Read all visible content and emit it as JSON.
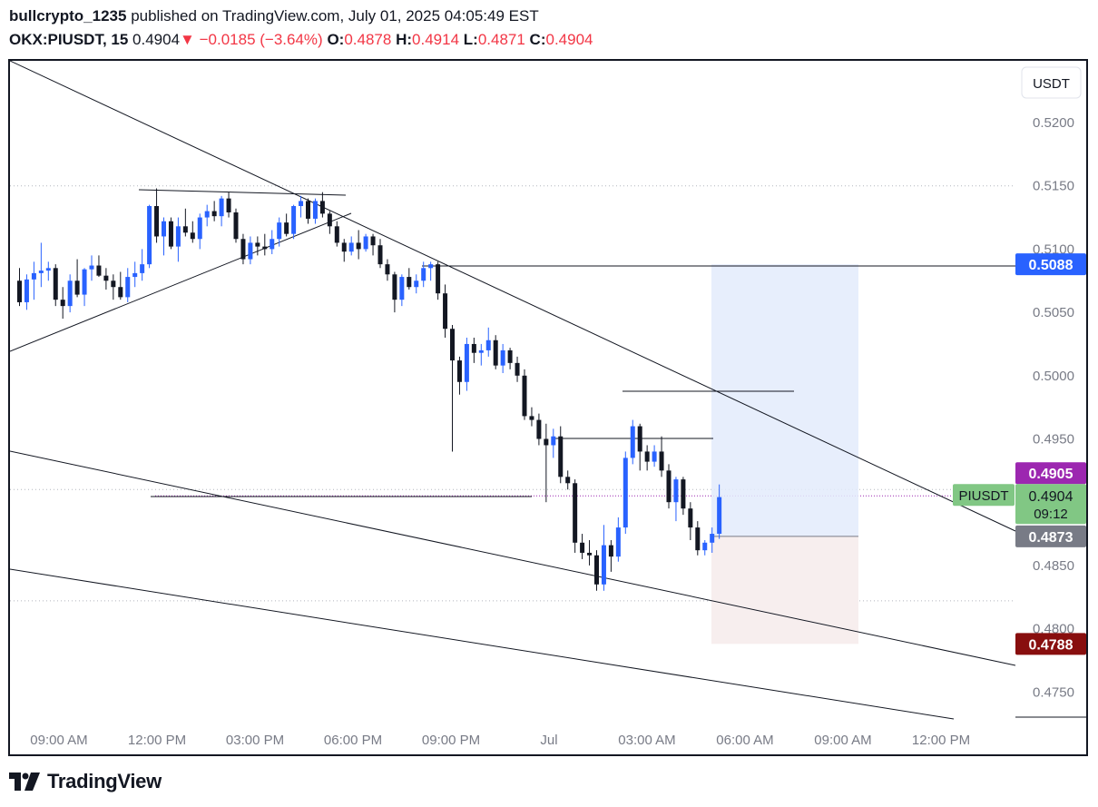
{
  "header": {
    "author": "bullcrypto_1235",
    "published_text": "published on TradingView.com, July 01, 2025 04:05:49 EST",
    "symbol": "OKX:PIUSDT, 15",
    "last_price": "0.4904",
    "change": "−0.0185 (−3.64%)",
    "o_label": "O:",
    "o_value": "0.4878",
    "h_label": "H:",
    "h_value": "0.4914",
    "l_label": "L:",
    "l_value": "0.4871",
    "c_label": "C:",
    "c_value": "0.4904"
  },
  "currency_button": "USDT",
  "footer": {
    "brand": "TradingView"
  },
  "colors": {
    "up": "#2962ff",
    "down": "#131722",
    "profit_zone": "#e3ebfb",
    "loss_zone": "#f7eeee",
    "symbol_tag": "#81c784",
    "current_tag": "#9c27b0"
  },
  "chart_data": {
    "type": "candlestick",
    "y_ticks": [
      "0.5200",
      "0.5150",
      "0.5100",
      "0.5050",
      "0.5000",
      "0.4950",
      "0.4850",
      "0.4800",
      "0.4750"
    ],
    "x_ticks": [
      "09:00 AM",
      "12:00 PM",
      "03:00 PM",
      "06:00 PM",
      "09:00 PM",
      "Jul",
      "03:00 AM",
      "06:00 AM",
      "09:00 AM",
      "12:00 PM"
    ],
    "price_tags": {
      "target": "0.5088",
      "high": "0.4905",
      "symbol_label": "PIUSDT",
      "current": "0.4904",
      "countdown": "09:12",
      "entry": "0.4873",
      "stop": "0.4788"
    },
    "candles": [
      [
        0.5075,
        0.5085,
        0.5055,
        0.5058
      ],
      [
        0.5058,
        0.508,
        0.5052,
        0.5076
      ],
      [
        0.5076,
        0.509,
        0.506,
        0.5081
      ],
      [
        0.5081,
        0.5105,
        0.507,
        0.5083
      ],
      [
        0.5083,
        0.509,
        0.5075,
        0.5085
      ],
      [
        0.5085,
        0.5088,
        0.5055,
        0.506
      ],
      [
        0.506,
        0.507,
        0.5045,
        0.5055
      ],
      [
        0.5055,
        0.508,
        0.505,
        0.5075
      ],
      [
        0.5075,
        0.5092,
        0.5062,
        0.5064
      ],
      [
        0.5064,
        0.5085,
        0.5055,
        0.5084
      ],
      [
        0.5084,
        0.5095,
        0.5075,
        0.5087
      ],
      [
        0.5087,
        0.5095,
        0.5078,
        0.5079
      ],
      [
        0.5079,
        0.5085,
        0.5068,
        0.5075
      ],
      [
        0.5075,
        0.508,
        0.506,
        0.507
      ],
      [
        0.507,
        0.5082,
        0.506,
        0.5062
      ],
      [
        0.5062,
        0.5085,
        0.5058,
        0.5078
      ],
      [
        0.5078,
        0.509,
        0.507,
        0.5081
      ],
      [
        0.5081,
        0.51,
        0.5075,
        0.5088
      ],
      [
        0.5088,
        0.5135,
        0.5085,
        0.5134
      ],
      [
        0.5134,
        0.5148,
        0.5105,
        0.511
      ],
      [
        0.511,
        0.5125,
        0.5095,
        0.5122
      ],
      [
        0.5122,
        0.5125,
        0.51,
        0.5102
      ],
      [
        0.5102,
        0.5125,
        0.509,
        0.5118
      ],
      [
        0.5118,
        0.5132,
        0.511,
        0.5113
      ],
      [
        0.5113,
        0.5122,
        0.5105,
        0.5108
      ],
      [
        0.5108,
        0.5128,
        0.51,
        0.5125
      ],
      [
        0.5125,
        0.5135,
        0.5118,
        0.513
      ],
      [
        0.513,
        0.5138,
        0.5122,
        0.5126
      ],
      [
        0.5126,
        0.5142,
        0.5118,
        0.514
      ],
      [
        0.514,
        0.5145,
        0.5125,
        0.5129
      ],
      [
        0.5129,
        0.5132,
        0.5105,
        0.5108
      ],
      [
        0.5108,
        0.5112,
        0.5088,
        0.5092
      ],
      [
        0.5092,
        0.511,
        0.5088,
        0.5105
      ],
      [
        0.5105,
        0.511,
        0.5095,
        0.5102
      ],
      [
        0.5102,
        0.5112,
        0.5095,
        0.51
      ],
      [
        0.51,
        0.5115,
        0.5096,
        0.5108
      ],
      [
        0.5108,
        0.5125,
        0.5102,
        0.5121
      ],
      [
        0.5121,
        0.5128,
        0.511,
        0.5112
      ],
      [
        0.5112,
        0.5135,
        0.5108,
        0.5134
      ],
      [
        0.5134,
        0.5142,
        0.5125,
        0.5138
      ],
      [
        0.5138,
        0.514,
        0.512,
        0.5124
      ],
      [
        0.5124,
        0.514,
        0.512,
        0.5138
      ],
      [
        0.5138,
        0.5145,
        0.5125,
        0.5128
      ],
      [
        0.5128,
        0.513,
        0.5112,
        0.5118
      ],
      [
        0.5118,
        0.5122,
        0.5102,
        0.5105
      ],
      [
        0.5105,
        0.5108,
        0.509,
        0.5098
      ],
      [
        0.5098,
        0.511,
        0.5095,
        0.5105
      ],
      [
        0.5105,
        0.5115,
        0.5092,
        0.51
      ],
      [
        0.51,
        0.5112,
        0.5098,
        0.511
      ],
      [
        0.511,
        0.5112,
        0.5095,
        0.5103
      ],
      [
        0.5103,
        0.5108,
        0.5085,
        0.5088
      ],
      [
        0.5088,
        0.5092,
        0.5075,
        0.508
      ],
      [
        0.508,
        0.5082,
        0.505,
        0.506
      ],
      [
        0.506,
        0.508,
        0.5055,
        0.5078
      ],
      [
        0.5078,
        0.5085,
        0.5068,
        0.507
      ],
      [
        0.507,
        0.508,
        0.5065,
        0.5075
      ],
      [
        0.5075,
        0.509,
        0.507,
        0.5085
      ],
      [
        0.5085,
        0.509,
        0.5075,
        0.5088
      ],
      [
        0.5088,
        0.509,
        0.506,
        0.5065
      ],
      [
        0.5065,
        0.5072,
        0.503,
        0.5037
      ],
      [
        0.5037,
        0.504,
        0.494,
        0.5012
      ],
      [
        0.5012,
        0.5015,
        0.4985,
        0.4995
      ],
      [
        0.4995,
        0.503,
        0.4988,
        0.5025
      ],
      [
        0.5025,
        0.503,
        0.501,
        0.5018
      ],
      [
        0.5018,
        0.5025,
        0.5008,
        0.502
      ],
      [
        0.502,
        0.5038,
        0.5015,
        0.5028
      ],
      [
        0.5028,
        0.5032,
        0.5005,
        0.5008
      ],
      [
        0.5008,
        0.5025,
        0.5002,
        0.502
      ],
      [
        0.502,
        0.5022,
        0.5005,
        0.501
      ],
      [
        0.501,
        0.5015,
        0.4995,
        0.5
      ],
      [
        0.5,
        0.5005,
        0.4965,
        0.4968
      ],
      [
        0.4968,
        0.4975,
        0.496,
        0.4965
      ],
      [
        0.4965,
        0.497,
        0.4945,
        0.495
      ],
      [
        0.495,
        0.4962,
        0.49,
        0.4945
      ],
      [
        0.4945,
        0.4958,
        0.4935,
        0.4952
      ],
      [
        0.4952,
        0.496,
        0.4915,
        0.492
      ],
      [
        0.492,
        0.4925,
        0.491,
        0.4915
      ],
      [
        0.4915,
        0.4918,
        0.486,
        0.4868
      ],
      [
        0.4868,
        0.4875,
        0.4855,
        0.486
      ],
      [
        0.486,
        0.487,
        0.485,
        0.4858
      ],
      [
        0.4858,
        0.4862,
        0.483,
        0.4835
      ],
      [
        0.4835,
        0.4882,
        0.483,
        0.4866
      ],
      [
        0.4866,
        0.487,
        0.4845,
        0.4857
      ],
      [
        0.4857,
        0.4888,
        0.4853,
        0.488
      ],
      [
        0.488,
        0.494,
        0.4875,
        0.4935
      ],
      [
        0.4935,
        0.4965,
        0.493,
        0.496
      ],
      [
        0.496,
        0.4962,
        0.4925,
        0.494
      ],
      [
        0.494,
        0.4945,
        0.4925,
        0.4932
      ],
      [
        0.4932,
        0.4945,
        0.4928,
        0.494
      ],
      [
        0.494,
        0.4952,
        0.492,
        0.4925
      ],
      [
        0.4925,
        0.493,
        0.4895,
        0.49
      ],
      [
        0.49,
        0.492,
        0.4885,
        0.4918
      ],
      [
        0.4918,
        0.492,
        0.489,
        0.4895
      ],
      [
        0.4895,
        0.49,
        0.487,
        0.488
      ],
      [
        0.488,
        0.4885,
        0.4858,
        0.4862
      ],
      [
        0.4862,
        0.487,
        0.4858,
        0.4868
      ],
      [
        0.4868,
        0.488,
        0.486,
        0.4875
      ],
      [
        0.4875,
        0.4914,
        0.4871,
        0.4904
      ]
    ]
  }
}
